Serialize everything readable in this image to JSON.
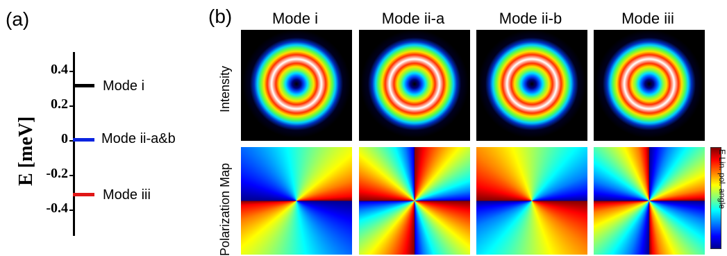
{
  "panel_a": {
    "label": "(a)",
    "axis_label": "E [meV]",
    "ticks": [
      "0.4",
      "0.2",
      "0",
      "-0.2",
      "-0.4"
    ],
    "levels": [
      {
        "name": "Mode i",
        "energy": 0.3,
        "color": "#000000"
      },
      {
        "name": "Mode ii-a&b",
        "energy": 0.0,
        "color": "#0a24e0"
      },
      {
        "name": "Mode iii",
        "energy": -0.3,
        "color": "#e01616"
      }
    ]
  },
  "panel_b": {
    "label": "(b)",
    "columns": [
      "Mode i",
      "Mode ii-a",
      "Mode ii-b",
      "Mode iii"
    ],
    "rows": [
      "Intensity",
      "Polarization Map"
    ],
    "colorbar_label": "E  Lin. pol. angle"
  }
}
